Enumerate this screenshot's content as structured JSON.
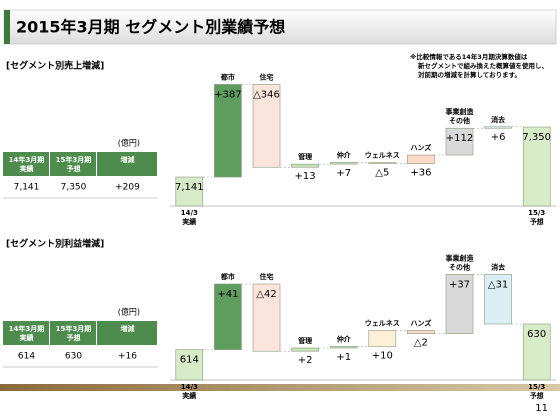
{
  "title": "2015年3月期 セグメント別業績予想",
  "note": [
    "※比較情報である14年3月期決算数値は",
    "新セグメントで組み換えた概算値を使用し、",
    "対前期の増減を計算しております。"
  ],
  "page_number": "11",
  "tables": [
    {
      "unit": "(億円)",
      "header": [
        "14年3月期 実績",
        "15年3月期 予想",
        "増減"
      ],
      "row": [
        "7,141",
        "7,350",
        "+209"
      ]
    },
    {
      "unit": "(億円)",
      "header": [
        "14年3月期 実績",
        "15年3月期 予想",
        "増減"
      ],
      "row": [
        "614",
        "630",
        "+16"
      ]
    }
  ],
  "chart_data": [
    {
      "type": "waterfall",
      "title": "[セグメント別売上増減]",
      "categories": [
        "14/3 実績",
        "都市",
        "住宅",
        "管理",
        "仲介",
        "ウェルネス",
        "ハンズ",
        "事業創造 その他",
        "消去",
        "15/3 予想"
      ],
      "values": [
        7141,
        387,
        -346,
        13,
        7,
        -5,
        36,
        112,
        6,
        7350
      ],
      "value_labels": [
        "7,141",
        "+387",
        "△346",
        "+13",
        "+7",
        "△5",
        "+36",
        "+112",
        "+6",
        "7,350"
      ],
      "colors": [
        "#d8ebc8",
        "#5f9d5f",
        "#fbe4dc",
        "#c8e0b8",
        "#c8e0b8",
        "#fbe4dc",
        "#fbd9c6",
        "#d9d9d9",
        "#dbeef4",
        "#d8ebc8"
      ],
      "ylim": [
        7020,
        7580
      ]
    },
    {
      "type": "waterfall",
      "title": "[セグメント別利益増減]",
      "categories": [
        "14/3 実績",
        "都市",
        "住宅",
        "管理",
        "仲介",
        "ウェルネス",
        "ハンズ",
        "事業創造 その他",
        "消去",
        "15/3 予想"
      ],
      "values": [
        614,
        41,
        -42,
        2,
        1,
        10,
        -2,
        37,
        -31,
        630
      ],
      "value_labels": [
        "614",
        "+41",
        "△42",
        "+2",
        "+1",
        "+10",
        "△2",
        "+37",
        "△31",
        "630"
      ],
      "colors": [
        "#d8ebc8",
        "#5f9d5f",
        "#fbe4dc",
        "#c8e0b8",
        "#c8e0b8",
        "#fdf0d6",
        "#fbd9c6",
        "#d9d9d9",
        "#dbeef4",
        "#d8ebc8"
      ],
      "ylim": [
        595,
        680
      ]
    }
  ]
}
